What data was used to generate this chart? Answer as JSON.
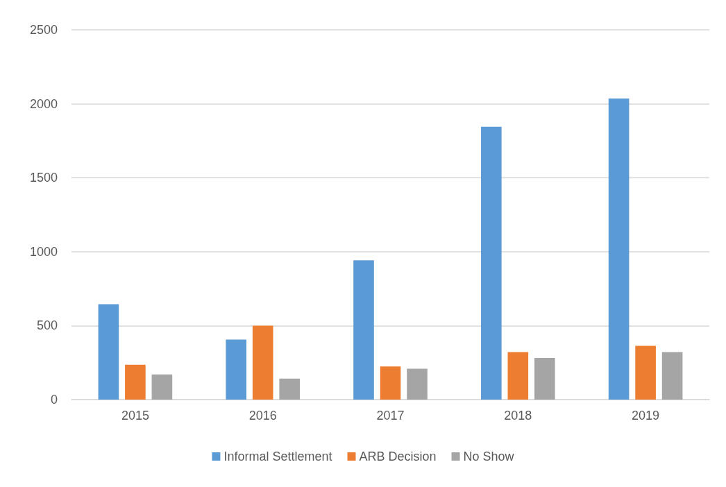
{
  "chart_data": {
    "type": "bar",
    "categories": [
      "2015",
      "2016",
      "2017",
      "2018",
      "2019"
    ],
    "series": [
      {
        "name": "Informal Settlement",
        "color": "#5b9bd5",
        "values": [
          645,
          406,
          942,
          1845,
          2036
        ]
      },
      {
        "name": "ARB Decision",
        "color": "#ed7d31",
        "values": [
          236,
          500,
          224,
          321,
          364
        ]
      },
      {
        "name": "No Show",
        "color": "#a5a5a5",
        "values": [
          170,
          142,
          209,
          282,
          321
        ]
      }
    ],
    "ylim": [
      0,
      2500
    ],
    "yticks": [
      0,
      500,
      1000,
      1500,
      2000,
      2500
    ],
    "grid": "y",
    "legend": "bottom"
  }
}
